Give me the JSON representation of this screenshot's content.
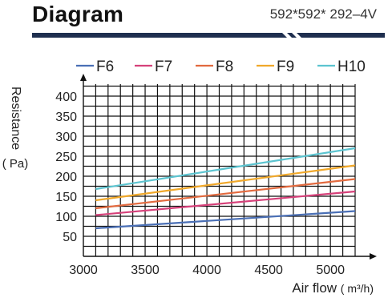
{
  "header": {
    "title": "Diagram",
    "spec": "592*592* 292–4V"
  },
  "colors": {
    "header_bar": "#1f2f4f"
  },
  "chart_data": {
    "type": "line",
    "title": "",
    "xlabel": "Air flow",
    "xlabel_unit": "( m³/h)",
    "ylabel": "Resistance",
    "ylabel_unit": "( Pa)",
    "x_ticks": [
      3000,
      3500,
      4000,
      4500,
      5000
    ],
    "y_ticks": [
      50,
      100,
      150,
      200,
      250,
      300,
      350,
      400
    ],
    "xlim": [
      3000,
      5200
    ],
    "ylim": [
      0,
      430
    ],
    "grid": true,
    "legend_position": "top",
    "x": [
      3100,
      5200
    ],
    "series": [
      {
        "name": "F6",
        "color": "#4a6fb5",
        "values": [
          70,
          113
        ]
      },
      {
        "name": "F7",
        "color": "#d6417a",
        "values": [
          103,
          162
        ]
      },
      {
        "name": "F8",
        "color": "#e26a3f",
        "values": [
          120,
          193
        ]
      },
      {
        "name": "F9",
        "color": "#f0a82a",
        "values": [
          140,
          227
        ]
      },
      {
        "name": "H10",
        "color": "#5cc4d0",
        "values": [
          168,
          270
        ]
      }
    ]
  }
}
